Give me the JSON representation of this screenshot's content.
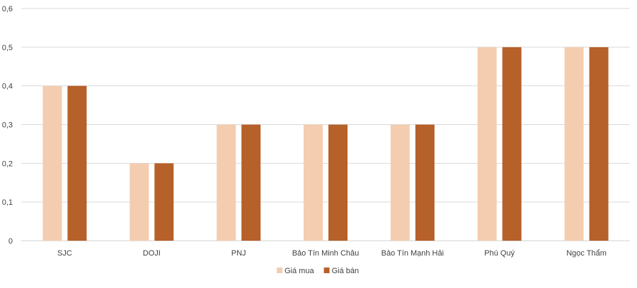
{
  "chart_data": {
    "type": "bar",
    "title": "",
    "xlabel": "",
    "ylabel": "",
    "categories": [
      "SJC",
      "DOJI",
      "PNJ",
      "Bảo Tín Minh Châu",
      "Bảo Tín Mạnh Hải",
      "Phú Quý",
      "Ngọc Thẩm"
    ],
    "series": [
      {
        "name": "Giá mua",
        "color": "#F4CDB0",
        "values": [
          0.4,
          0.2,
          0.3,
          0.3,
          0.3,
          0.5,
          0.5
        ]
      },
      {
        "name": "Giá bán",
        "color": "#B6602A",
        "values": [
          0.4,
          0.2,
          0.3,
          0.3,
          0.3,
          0.5,
          0.5
        ]
      }
    ],
    "ylim": [
      0,
      0.6
    ],
    "yticks": [
      "0",
      "0,1",
      "0,2",
      "0,3",
      "0,4",
      "0,5",
      "0,6"
    ],
    "grid": true,
    "legend": "bottom"
  }
}
